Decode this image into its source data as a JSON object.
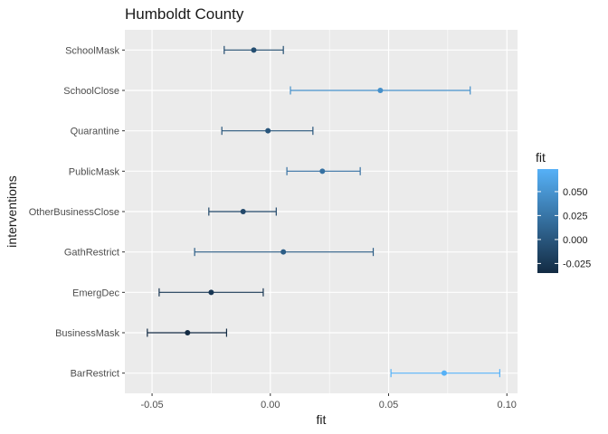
{
  "chart_data": {
    "type": "scatter",
    "title": "Humboldt County",
    "xlabel": "fit",
    "ylabel": "interventions",
    "xlim": [
      -0.0615,
      0.1045
    ],
    "x_ticks": [
      -0.05,
      0.0,
      0.05,
      0.1
    ],
    "x_tick_labels": [
      "-0.05",
      "0.00",
      "0.05",
      "0.10"
    ],
    "x_minor_ticks": [
      -0.025,
      0.025,
      0.075
    ],
    "categories": [
      "SchoolMask",
      "SchoolClose",
      "Quarantine",
      "PublicMask",
      "OtherBusinessClose",
      "GathRestrict",
      "EmergDec",
      "BusinessMask",
      "BarRestrict"
    ],
    "fit": [
      -0.007,
      0.0465,
      -0.001,
      0.022,
      -0.0115,
      0.0055,
      -0.025,
      -0.035,
      0.0735
    ],
    "lower": [
      -0.0195,
      0.0085,
      -0.0205,
      0.007,
      -0.026,
      -0.032,
      -0.047,
      -0.052,
      0.051
    ],
    "upper": [
      0.0055,
      0.0845,
      0.018,
      0.038,
      0.0025,
      0.0435,
      -0.003,
      -0.0185,
      0.097
    ],
    "grid": true,
    "legend": {
      "title": "fit",
      "placement": "right",
      "range": [
        -0.035,
        0.0735
      ],
      "ticks": [
        -0.025,
        0.0,
        0.025,
        0.05
      ],
      "tick_labels": [
        "-0.025",
        "0.000",
        "0.025",
        "0.050"
      ],
      "colors": [
        "#132B43",
        "#56B1F7"
      ]
    },
    "panel_color": "#EBEBEB",
    "grid_color": "#FFFFFF"
  }
}
